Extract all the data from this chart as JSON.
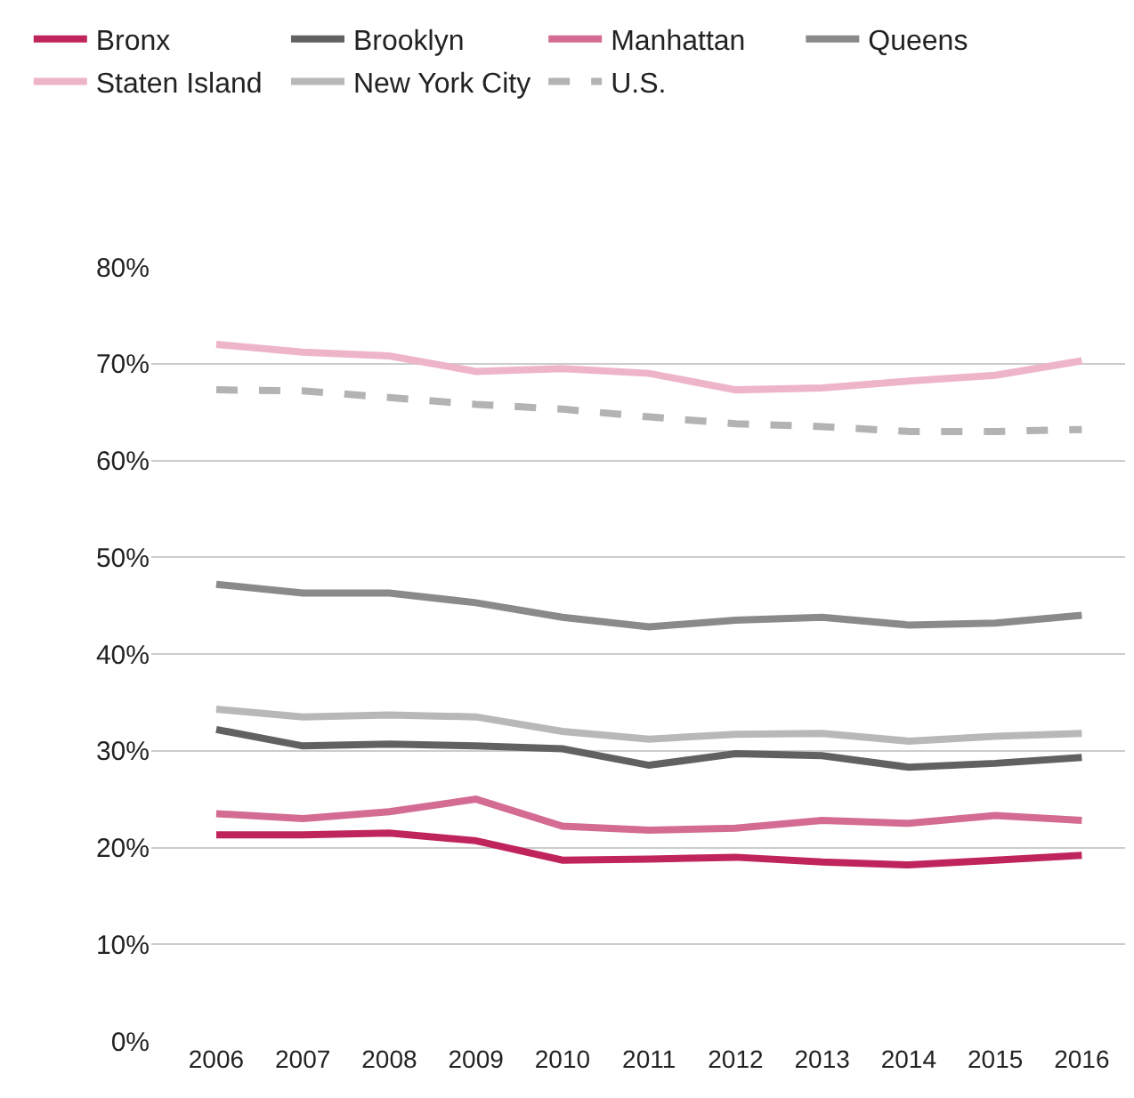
{
  "chart_data": {
    "type": "line",
    "categories": [
      "2006",
      "2007",
      "2008",
      "2009",
      "2010",
      "2011",
      "2012",
      "2013",
      "2014",
      "2015",
      "2016"
    ],
    "series": [
      {
        "name": "Bronx",
        "color": "#c0245c",
        "values": [
          21.3,
          21.3,
          21.5,
          20.7,
          18.7,
          18.8,
          19.0,
          18.5,
          18.2,
          18.7,
          19.2
        ]
      },
      {
        "name": "Brooklyn",
        "color": "#616161",
        "values": [
          32.2,
          30.5,
          30.7,
          30.5,
          30.2,
          28.5,
          29.7,
          29.5,
          28.3,
          28.7,
          29.3
        ]
      },
      {
        "name": "Manhattan",
        "color": "#d36b92",
        "values": [
          23.5,
          23.0,
          23.7,
          25.0,
          22.2,
          21.8,
          22.0,
          22.8,
          22.5,
          23.3,
          22.8
        ]
      },
      {
        "name": "Queens",
        "color": "#8a8a8a",
        "values": [
          47.2,
          46.3,
          46.3,
          45.3,
          43.8,
          42.8,
          43.5,
          43.8,
          43.0,
          43.2,
          44.0
        ]
      },
      {
        "name": "Staten Island",
        "color": "#eeb4ca",
        "values": [
          72.0,
          71.2,
          70.8,
          69.2,
          69.5,
          69.0,
          67.3,
          67.5,
          68.2,
          68.8,
          70.3
        ]
      },
      {
        "name": "New York City",
        "color": "#b8b8b8",
        "values": [
          34.3,
          33.5,
          33.7,
          33.5,
          32.0,
          31.2,
          31.7,
          31.8,
          31.0,
          31.5,
          31.8
        ]
      },
      {
        "name": "U.S.",
        "color": "#b3b3b3",
        "line_style": "dashed",
        "values": [
          67.3,
          67.2,
          66.5,
          65.8,
          65.3,
          64.5,
          63.8,
          63.5,
          63.0,
          63.0,
          63.2
        ]
      }
    ],
    "ylim": [
      0,
      80
    ],
    "yticks": [
      {
        "value": 0,
        "label": "0%"
      },
      {
        "value": 10,
        "label": "10%"
      },
      {
        "value": 20,
        "label": "20%"
      },
      {
        "value": 30,
        "label": "30%"
      },
      {
        "value": 40,
        "label": "40%"
      },
      {
        "value": 50,
        "label": "50%"
      },
      {
        "value": 60,
        "label": "60%"
      },
      {
        "value": 70,
        "label": "70%"
      },
      {
        "value": 80,
        "label": "80%"
      }
    ],
    "grid": "y",
    "legend": "top left",
    "marker": "none",
    "line_style": "solid"
  }
}
